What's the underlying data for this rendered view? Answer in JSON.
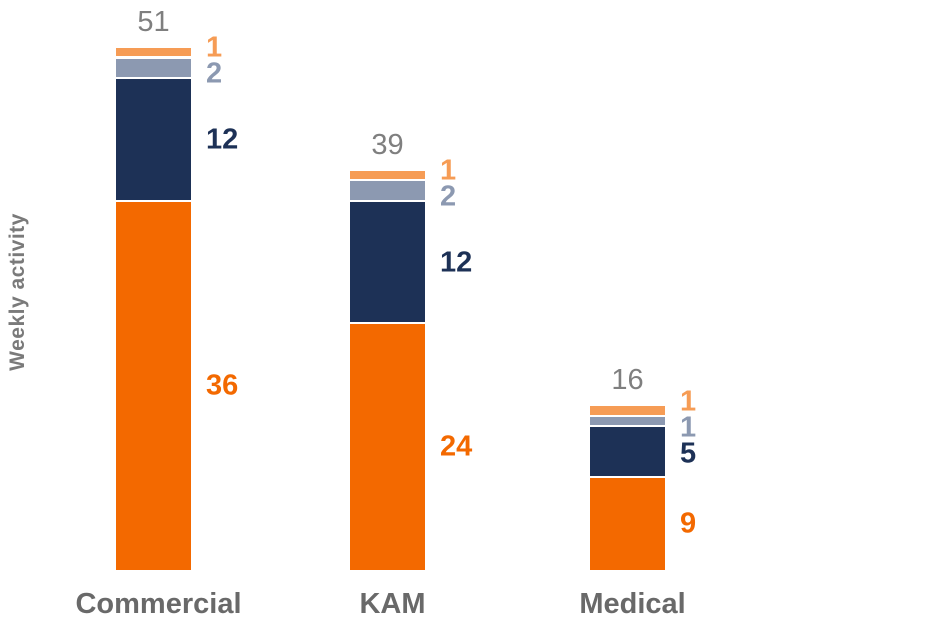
{
  "chart_data": {
    "type": "bar",
    "stacked": true,
    "orientation": "vertical",
    "stack_order": "bottom-to-top",
    "title": "",
    "ylabel": "Weekly activity",
    "categories": [
      "Commercial",
      "KAM",
      "Medical"
    ],
    "series": [
      {
        "name": "orange-segment",
        "color": "#F36900",
        "values": [
          36,
          24,
          9
        ]
      },
      {
        "name": "navy-segment",
        "color": "#1D3156",
        "values": [
          12,
          12,
          5
        ]
      },
      {
        "name": "blue-gray-segment",
        "color": "#8C99B1",
        "values": [
          2,
          2,
          1
        ]
      },
      {
        "name": "light-orange-segment",
        "color": "#F69C55",
        "values": [
          1,
          1,
          1
        ]
      }
    ],
    "totals": [
      51,
      39,
      16
    ],
    "ylim": [
      0,
      51
    ],
    "gridlines": false,
    "axis_lines": false,
    "legend_position": "none",
    "styles": {
      "background": "#FFFFFF",
      "segment_separator_color": "#FFFFFF",
      "total_label_color": "#7F7F7F",
      "category_label_color": "#696969",
      "ylabel_color": "#7A7A7A"
    }
  }
}
